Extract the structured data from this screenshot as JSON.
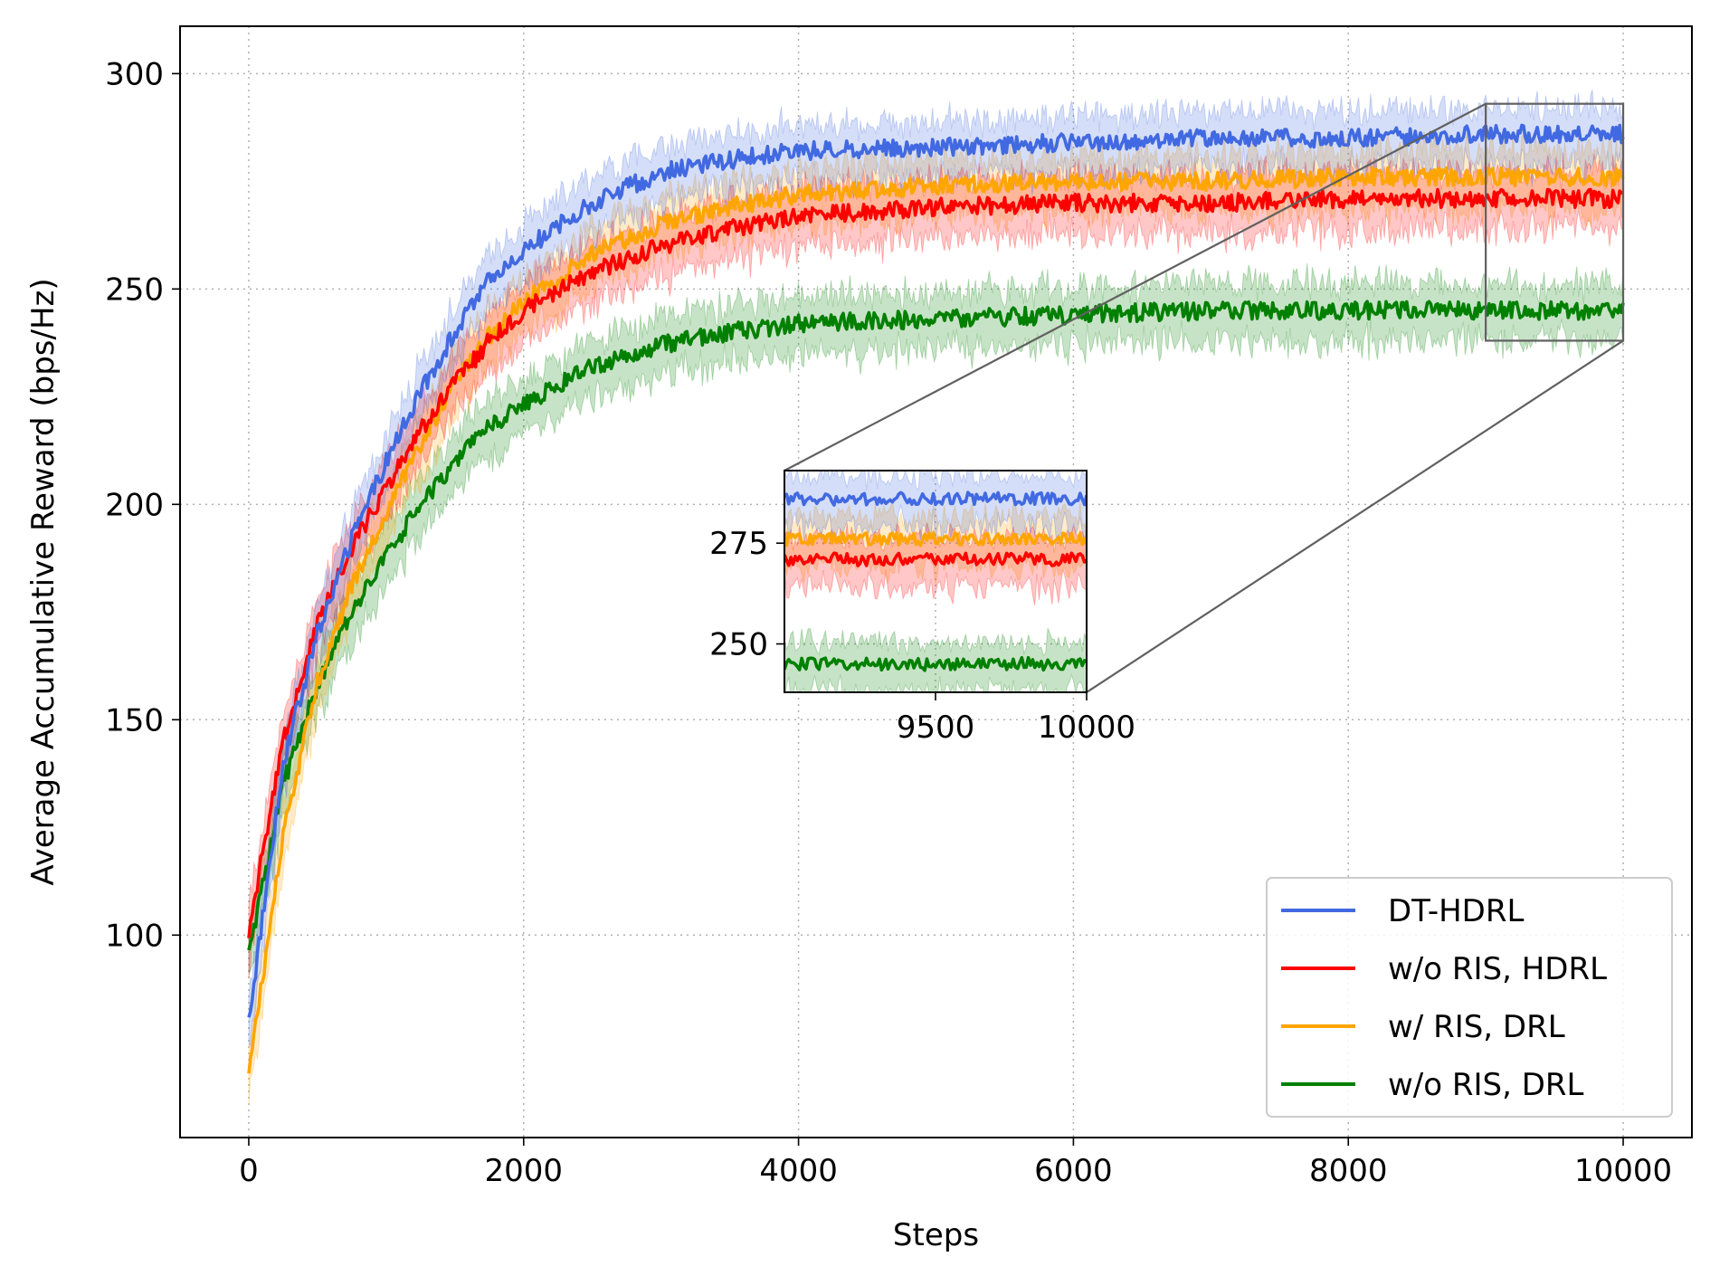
{
  "chart_data": {
    "type": "line",
    "title": "",
    "xlabel": "Steps",
    "ylabel": "Average Accumulative Reward (bps/Hz)",
    "xlim": [
      -500,
      10500
    ],
    "ylim": [
      53,
      311
    ],
    "xticks": [
      0,
      2000,
      4000,
      6000,
      8000,
      10000
    ],
    "xtick_labels": [
      "0",
      "2000",
      "4000",
      "6000",
      "8000",
      "10000"
    ],
    "yticks": [
      100,
      150,
      200,
      250,
      300
    ],
    "ytick_labels": [
      "100",
      "150",
      "200",
      "250",
      "300"
    ],
    "grid": "dotted",
    "legend_position": "lower-right",
    "shaded_band": "noisy per-step samples around each curve",
    "series": [
      {
        "name": "DT-HDRL",
        "color": "#4169e1",
        "x": [
          0,
          250,
          500,
          750,
          1000,
          1250,
          1500,
          1750,
          2000,
          2500,
          3000,
          3500,
          4000,
          5000,
          6000,
          7000,
          8000,
          9000,
          10000
        ],
        "values": [
          80,
          140,
          170,
          192,
          210,
          226,
          240,
          252,
          259,
          270,
          277,
          280,
          282,
          283,
          284,
          285,
          285,
          286,
          286
        ]
      },
      {
        "name": "w/o RIS, HDRL",
        "color": "#ff0000",
        "x": [
          0,
          250,
          500,
          750,
          1000,
          1250,
          1500,
          1750,
          2000,
          2500,
          3000,
          3500,
          4000,
          5000,
          6000,
          7000,
          8000,
          9000,
          10000
        ],
        "values": [
          101,
          145,
          172,
          190,
          204,
          217,
          228,
          238,
          245,
          254,
          260,
          264,
          267,
          269,
          270,
          270,
          271,
          271,
          271
        ]
      },
      {
        "name": "w/ RIS, DRL",
        "color": "#ffa500",
        "x": [
          0,
          250,
          500,
          750,
          1000,
          1250,
          1500,
          1750,
          2000,
          2500,
          3000,
          3500,
          4000,
          5000,
          6000,
          7000,
          8000,
          9000,
          10000
        ],
        "values": [
          68,
          123,
          159,
          181,
          198,
          214,
          228,
          239,
          247,
          258,
          265,
          269,
          272,
          274,
          275,
          275,
          276,
          276,
          276
        ]
      },
      {
        "name": "w/o RIS, DRL",
        "color": "#008000",
        "x": [
          0,
          250,
          500,
          750,
          1000,
          1250,
          1500,
          1750,
          2000,
          2500,
          3000,
          3500,
          4000,
          5000,
          6000,
          7000,
          8000,
          9000,
          10000
        ],
        "values": [
          95,
          135,
          158,
          175,
          188,
          200,
          210,
          218,
          223,
          232,
          237,
          240,
          242,
          243,
          244,
          245,
          245,
          245,
          245
        ]
      }
    ],
    "inset": {
      "xlim": [
        9000,
        10000
      ],
      "ylim": [
        238,
        293
      ],
      "xticks": [
        9500,
        10000
      ],
      "xtick_labels": [
        "9500",
        "10000"
      ],
      "yticks": [
        250,
        275
      ],
      "ytick_labels": [
        "250",
        "275"
      ]
    }
  }
}
